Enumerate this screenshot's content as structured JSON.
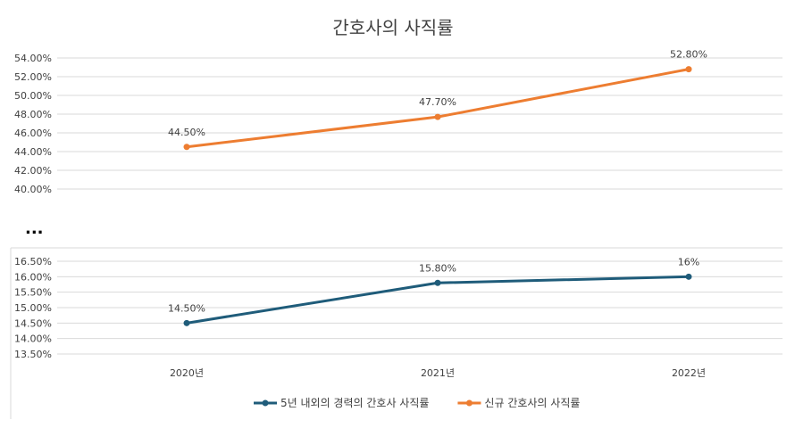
{
  "chart_data": {
    "type": "line",
    "title": "간호사의 사직률",
    "categories": [
      "2020년",
      "2021년",
      "2022년"
    ],
    "series": [
      {
        "name": "신규 간호사의 사직률",
        "color": "#ED7D31",
        "values": [
          44.5,
          47.7,
          52.8
        ],
        "labels": [
          "44.50%",
          "47.70%",
          "52.80%"
        ]
      },
      {
        "name": "5년 내외의 경력의 간호사 사직률",
        "color": "#1F5C7A",
        "values": [
          14.5,
          15.8,
          16.0
        ],
        "labels": [
          "14.50%",
          "15.80%",
          "16%"
        ]
      }
    ],
    "axes": [
      {
        "series": 0,
        "ylim": [
          40,
          54
        ],
        "ticks": [
          "40.00%",
          "42.00%",
          "44.00%",
          "46.00%",
          "48.00%",
          "50.00%",
          "52.00%",
          "54.00%"
        ]
      },
      {
        "series": 1,
        "ylim": [
          13.5,
          16.5
        ],
        "ticks": [
          "13.50%",
          "14.00%",
          "14.50%",
          "15.00%",
          "15.50%",
          "16.00%",
          "16.50%"
        ]
      }
    ],
    "axis_break": "...",
    "grid": true,
    "legend_position": "bottom",
    "legend_order": [
      1,
      0
    ]
  }
}
